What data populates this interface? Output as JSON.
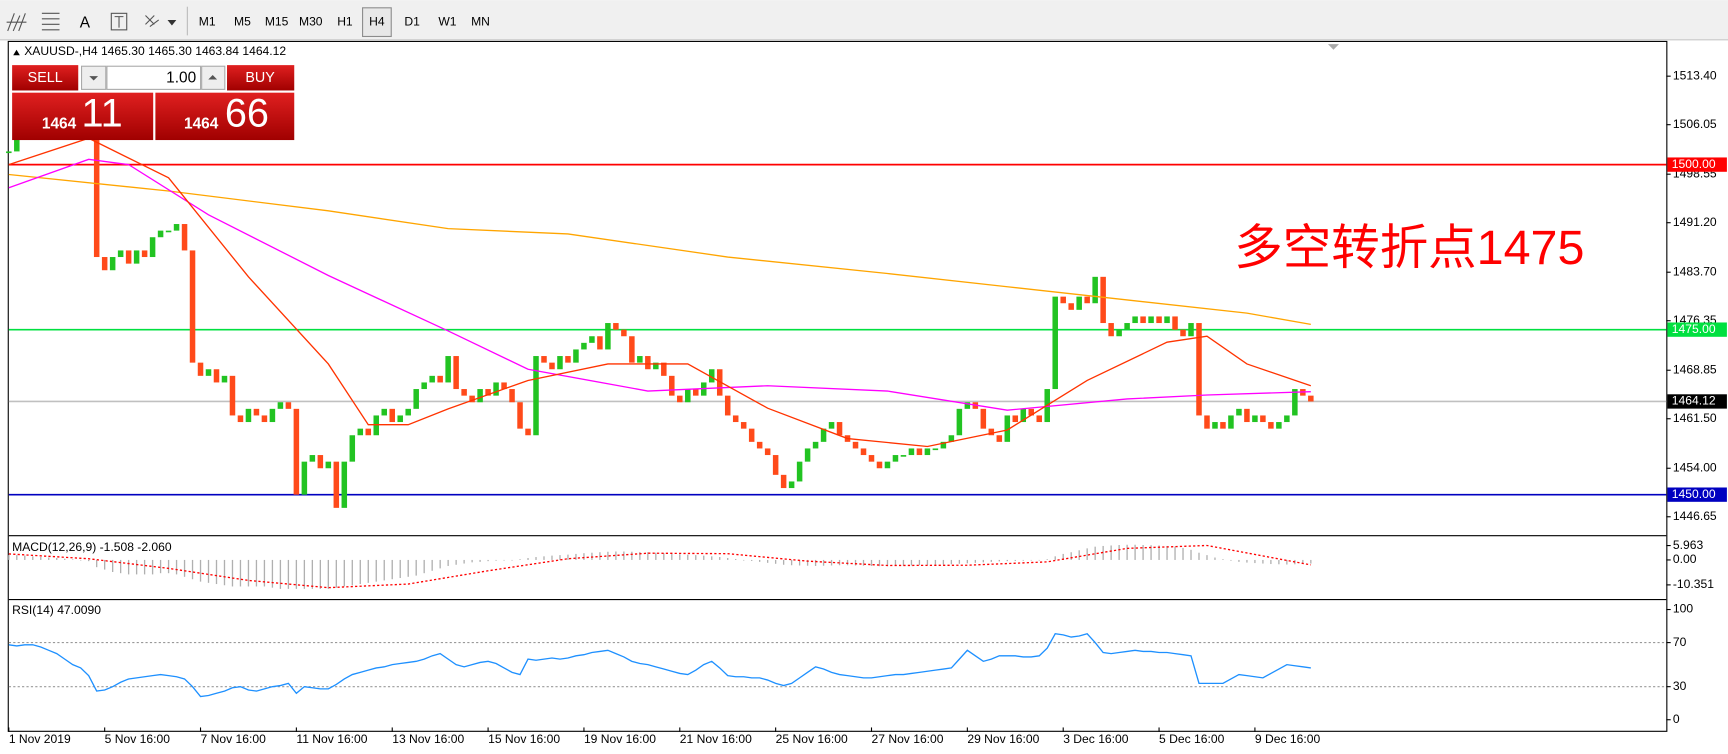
{
  "toolbar": {
    "text_tool": "A",
    "timeframes": [
      "M1",
      "M5",
      "M15",
      "M30",
      "H1",
      "H4",
      "D1",
      "W1",
      "MN"
    ]
  },
  "trade_panel": {
    "sell": "SELL",
    "buy": "BUY",
    "volume": "1.00",
    "bid_big": "1464",
    "bid_small": "11",
    "ask_big": "1464",
    "ask_small": "66"
  },
  "chart_data": [
    {
      "type": "candlestick",
      "title": "XAUUSD-,H4  1465.30 1465.30 1463.84 1464.12",
      "values": [
        1502,
        1504,
        1506,
        1505,
        1507,
        1508,
        1506,
        1507,
        1505,
        1506,
        1505,
        1486,
        1484,
        1486,
        1487,
        1485,
        1487,
        1486,
        1489,
        1490,
        1490,
        1491,
        1487,
        1470,
        1468,
        1469,
        1467,
        1468,
        1462,
        1461,
        1463,
        1462,
        1461,
        1463,
        1464,
        1463,
        1450,
        1455,
        1456,
        1454,
        1455,
        1448,
        1455,
        1459,
        1460,
        1459,
        1462,
        1463,
        1461,
        1462,
        1463,
        1466,
        1467,
        1468,
        1467,
        1471,
        1466,
        1465,
        1464,
        1466,
        1465,
        1467,
        1466,
        1464,
        1460,
        1459,
        1471,
        1470,
        1469,
        1471,
        1470,
        1472,
        1473,
        1474,
        1472,
        1476,
        1475,
        1474,
        1470,
        1471,
        1469,
        1470,
        1468,
        1465,
        1464,
        1466,
        1465,
        1467,
        1469,
        1465,
        1462,
        1461,
        1460,
        1458,
        1457,
        1456,
        1453,
        1451,
        1452,
        1455,
        1457,
        1458,
        1460,
        1461,
        1459,
        1458,
        1457,
        1456,
        1455,
        1454,
        1455,
        1456,
        1456,
        1457,
        1456,
        1457,
        1457,
        1458,
        1459,
        1463,
        1464,
        1463,
        1460,
        1459,
        1458,
        1462,
        1461,
        1463,
        1462,
        1461,
        1466,
        1480,
        1479,
        1478,
        1480,
        1479,
        1483,
        1476,
        1474,
        1475,
        1476,
        1477,
        1476,
        1477,
        1476,
        1477,
        1475,
        1474,
        1476,
        1462,
        1460,
        1461,
        1460,
        1462,
        1463,
        1461,
        1462,
        1461,
        1460,
        1461,
        1462,
        1466,
        1465,
        1464.12
      ],
      "up_color": "#22c322",
      "down_color": "#ff4a1a",
      "series": [
        {
          "color": "#ffa500",
          "x": [
            0,
            20,
            40,
            55,
            70,
            90,
            110,
            125,
            140,
            155,
            163
          ],
          "values": [
            1498.5,
            1496,
            1493,
            1490.3,
            1489.5,
            1486,
            1483.5,
            1481.5,
            1479.5,
            1477.5,
            1475.8
          ]
        },
        {
          "color": "#ff00ff",
          "x": [
            0,
            10,
            15,
            25,
            40,
            55,
            65,
            80,
            95,
            110,
            125,
            140,
            150,
            163
          ],
          "values": [
            1496.5,
            1500.8,
            1500,
            1492.4,
            1483.2,
            1474.8,
            1469,
            1465.7,
            1466.5,
            1465.7,
            1462.8,
            1464.5,
            1465.1,
            1465.6
          ]
        },
        {
          "color": "#ff3300",
          "x": [
            0,
            10,
            20,
            30,
            40,
            45,
            50,
            55,
            65,
            75,
            85,
            95,
            105,
            115,
            125,
            135,
            145,
            150,
            155,
            163
          ],
          "values": [
            1500,
            1504,
            1498,
            1483,
            1469.8,
            1460.6,
            1460.6,
            1463,
            1467.3,
            1469.8,
            1469.8,
            1463.1,
            1458.5,
            1457.3,
            1459.8,
            1467.3,
            1473.1,
            1474,
            1469.8,
            1466.5
          ]
        }
      ],
      "hlines": [
        {
          "value": 1500,
          "label": "1500.00",
          "color": "#ff0000",
          "box_color": "#ff0000"
        },
        {
          "value": 1475,
          "label": "1475.00",
          "color": "#00e040",
          "box_color": "#00e040"
        },
        {
          "value": 1450,
          "label": "1450.00",
          "color": "#0000c0",
          "box_color": "#0000c0"
        },
        {
          "value": 1464.12,
          "label": "1464.12",
          "color": "#c0c0c0",
          "box_color": "#000000"
        }
      ],
      "annotation": {
        "text": "多空转折点1475",
        "color": "#ff0000"
      },
      "xlim": [
        0,
        207.5
      ],
      "ylim": [
        1443.95,
        1518.58
      ],
      "yticks": [
        {
          "value": 1513.4,
          "label": "1513.40"
        },
        1506.05,
        1498.55,
        {
          "value": 1491.2,
          "label": "1491.20"
        },
        {
          "value": 1483.7,
          "label": "1483.70"
        },
        1476.35,
        1468.85,
        {
          "value": 1461.5,
          "label": "1461.50"
        },
        {
          "value": 1454,
          "label": "1454.00"
        },
        1446.65
      ]
    },
    {
      "type": "bar",
      "title": "MACD(12,26,9) -1.508 -2.060",
      "color": "#b0b0b0",
      "values": [
        2,
        2,
        1.8,
        1.5,
        1.2,
        1,
        0.8,
        0.5,
        0.2,
        0,
        -0.5,
        -3,
        -4,
        -5,
        -5.5,
        -6,
        -6,
        -6,
        -6,
        -5.5,
        -5.5,
        -6,
        -7,
        -8,
        -9,
        -9.5,
        -10,
        -10.5,
        -11,
        -11,
        -11,
        -11,
        -11,
        -11.5,
        -12,
        -12,
        -12,
        -12,
        -12,
        -12,
        -12,
        -11.5,
        -11,
        -10.5,
        -10,
        -9.5,
        -9,
        -8.5,
        -8,
        -7.5,
        -7,
        -6.5,
        -5.5,
        -4.5,
        -3.5,
        -2.5,
        -2,
        -1.5,
        -1,
        -0.8,
        -0.5,
        -0.3,
        -0.2,
        0,
        0.3,
        0.8,
        1.2,
        1.5,
        1.8,
        2,
        2.2,
        2.5,
        2.8,
        3,
        3.2,
        3.4,
        3.5,
        3.5,
        3.4,
        3.3,
        3.2,
        3,
        2.8,
        2.6,
        2.4,
        2.2,
        2,
        1.8,
        1.5,
        1.2,
        0.8,
        0.4,
        0,
        -0.4,
        -0.8,
        -1.2,
        -1.6,
        -2,
        -2.2,
        -2.3,
        -2.4,
        -2.5,
        -2.4,
        -2.3,
        -2.2,
        -2.2,
        -2.3,
        -2.4,
        -2.5,
        -2.6,
        -2.6,
        -2.5,
        -2.4,
        -2.3,
        -2.2,
        -2.1,
        -2,
        -1.9,
        -1.8,
        -1.6,
        -1.4,
        -1.2,
        -1,
        -0.8,
        -0.6,
        -0.5,
        -0.4,
        -0.3,
        -0.2,
        0,
        0.3,
        1.5,
        2.5,
        3.2,
        4,
        4.8,
        5.5,
        5.8,
        6,
        6.2,
        6.3,
        6.3,
        6.2,
        6.1,
        6,
        5.8,
        5.5,
        5,
        4.2,
        3,
        2,
        1,
        0.3,
        -0.3,
        -0.8,
        -1.1,
        -1.3,
        -1.5,
        -1.7,
        -1.8,
        -1.9,
        -1.8,
        -1.6,
        -1.508
      ],
      "series": [
        {
          "color": "#ff0000",
          "x": [
            0,
            10,
            20,
            30,
            40,
            50,
            60,
            70,
            80,
            90,
            100,
            110,
            120,
            130,
            140,
            150,
            163
          ],
          "values": [
            2.5,
            0.5,
            -3.5,
            -8.5,
            -11.5,
            -10,
            -4.5,
            0.5,
            2.8,
            2.6,
            -0.5,
            -2.3,
            -2.2,
            -0.8,
            4.8,
            6,
            -2.06
          ]
        }
      ],
      "xlim": [
        0,
        207.5
      ],
      "ylim": [
        -16,
        9.6
      ],
      "yticks": [
        5.963,
        {
          "value": 0,
          "label": "0.00"
        },
        -10.351
      ]
    },
    {
      "type": "line",
      "title": "RSI(14) 47.0090",
      "color": "#1e90ff",
      "values": [
        68,
        67,
        68,
        68,
        66,
        63,
        60,
        55,
        50,
        47,
        40,
        26,
        27,
        30,
        34,
        37,
        38,
        39,
        40,
        41,
        40,
        39,
        37,
        30,
        21,
        22,
        24,
        26,
        29,
        30,
        27,
        26,
        28,
        30,
        31,
        33,
        24,
        30,
        29,
        28,
        28,
        32,
        37,
        41,
        43,
        45,
        47,
        48,
        50,
        51,
        52,
        53,
        55,
        58,
        60,
        55,
        50,
        48,
        50,
        52,
        53,
        51,
        47,
        43,
        41,
        55,
        54,
        55,
        56,
        55,
        56,
        58,
        59,
        61,
        62,
        63,
        60,
        57,
        53,
        51,
        50,
        48,
        46,
        44,
        42,
        41,
        45,
        50,
        53,
        47,
        40,
        39,
        39,
        38,
        38,
        36,
        33,
        31,
        33,
        38,
        43,
        48,
        46,
        43,
        41,
        40,
        39,
        38,
        38,
        39,
        40,
        41,
        41,
        42,
        43,
        44,
        45,
        46,
        47,
        55,
        63,
        58,
        53,
        55,
        58,
        58,
        58,
        57,
        57,
        58,
        65,
        78,
        77,
        75,
        76,
        78,
        70,
        61,
        60,
        61,
        62,
        63,
        62,
        62,
        61,
        61,
        60,
        59,
        58,
        33,
        33,
        33,
        33,
        37,
        41,
        40,
        39,
        38,
        42,
        46,
        50,
        49,
        48,
        47
      ],
      "grid": true,
      "xlim": [
        0,
        207.5
      ],
      "ylim": [
        -7,
        108
      ],
      "yticks": [
        100,
        70,
        30,
        0
      ],
      "xticks": [
        {
          "value": 0,
          "label": "1 Nov 2019"
        },
        {
          "value": 12,
          "label": "5 Nov 16:00"
        },
        {
          "value": 24,
          "label": "7 Nov 16:00"
        },
        {
          "value": 36,
          "label": "11 Nov 16:00"
        },
        {
          "value": 48,
          "label": "13 Nov 16:00"
        },
        {
          "value": 60,
          "label": "15 Nov 16:00"
        },
        {
          "value": 72,
          "label": "19 Nov 16:00"
        },
        {
          "value": 84,
          "label": "21 Nov 16:00"
        },
        {
          "value": 96,
          "label": "25 Nov 16:00"
        },
        {
          "value": 108,
          "label": "27 Nov 16:00"
        },
        {
          "value": 120,
          "label": "29 Nov 16:00"
        },
        {
          "value": 132,
          "label": "3 Dec 16:00"
        },
        {
          "value": 144,
          "label": "5 Dec 16:00"
        },
        {
          "value": 156,
          "label": "9 Dec 16:00"
        }
      ]
    }
  ]
}
